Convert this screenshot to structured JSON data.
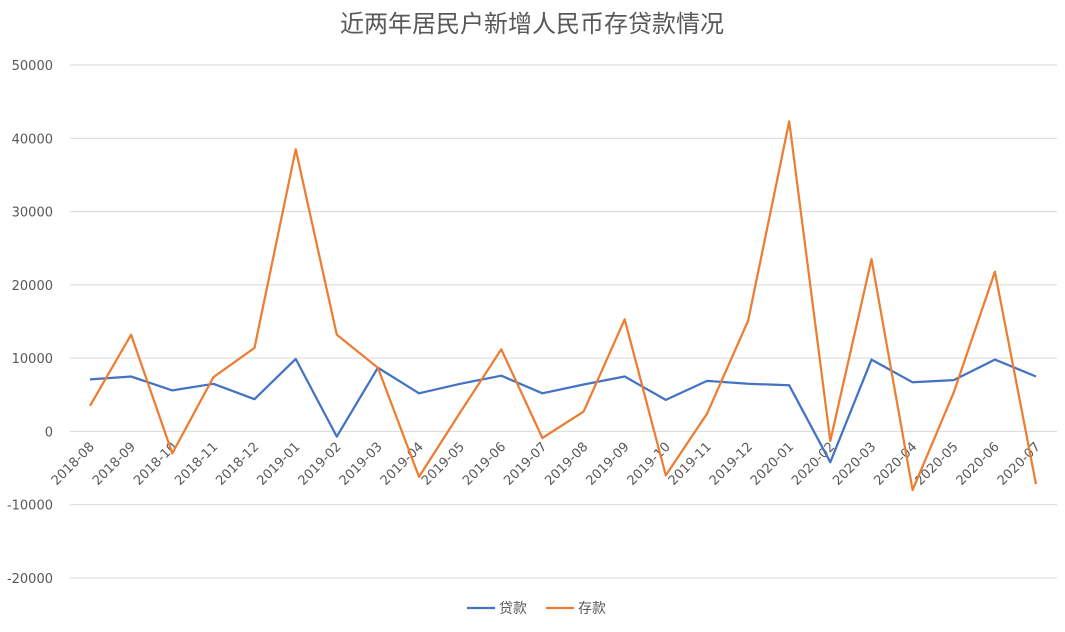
{
  "chart_data": {
    "type": "line",
    "title": "近两年居民户新增人民币存贷款情况",
    "xlabel": "",
    "ylabel": "",
    "ylim": [
      -20000,
      50000
    ],
    "yticks": [
      50000,
      40000,
      30000,
      20000,
      10000,
      0,
      -10000,
      -20000
    ],
    "grid": true,
    "legend_position": "bottom",
    "categories": [
      "2018-08",
      "2018-09",
      "2018-10",
      "2018-11",
      "2018-12",
      "2019-01",
      "2019-02",
      "2019-03",
      "2019-04",
      "2019-05",
      "2019-06",
      "2019-07",
      "2019-08",
      "2019-09",
      "2019-10",
      "2019-11",
      "2019-12",
      "2020-01",
      "2020-02",
      "2020-03",
      "2020-04",
      "2020-05",
      "2020-06",
      "2020-07"
    ],
    "series": [
      {
        "name": "贷款",
        "color": "#4472c4",
        "values": [
          7100,
          7500,
          5600,
          6500,
          4400,
          9900,
          -700,
          8700,
          5200,
          6500,
          7600,
          5200,
          6400,
          7500,
          4300,
          6900,
          6500,
          6300,
          -4200,
          9800,
          6700,
          7000,
          9800,
          7500
        ]
      },
      {
        "name": "存款",
        "color": "#ed7d31",
        "values": [
          3500,
          13200,
          -3000,
          7400,
          11400,
          38500,
          13200,
          8700,
          -6200,
          2600,
          11200,
          -900,
          2700,
          15300,
          -6000,
          2400,
          15100,
          42300,
          -1300,
          23500,
          -8000,
          5300,
          21800,
          -7200
        ]
      }
    ]
  }
}
